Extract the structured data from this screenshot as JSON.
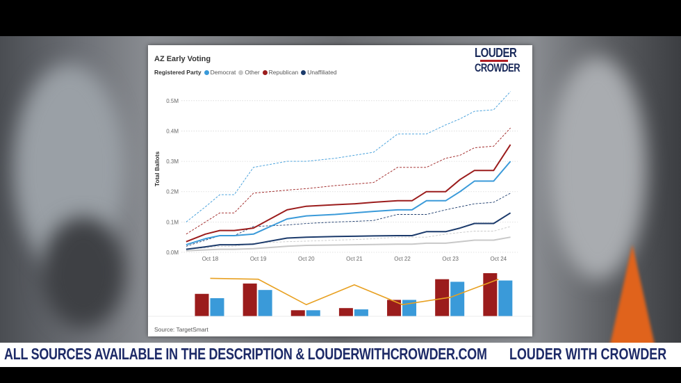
{
  "ticker": {
    "message": "ALL SOURCES AVAILABLE IN THE DESCRIPTION & LOUDERWITHCROWDER.COM",
    "brand": "LOUDER WITH CROWDER"
  },
  "logo": {
    "line1": "LOUDER",
    "line2": "CROWDER"
  },
  "colors": {
    "democrat": "#3a9ad9",
    "other": "#c8c8c8",
    "republican": "#9b1c1c",
    "unaffiliated": "#1b3a6b",
    "trend_line": "#e8a020"
  },
  "chart_data": {
    "type": "line",
    "title": "AZ Early Voting",
    "legend_title": "Registered Party",
    "ylabel": "Total Ballots",
    "ylim": [
      0,
      0.55
    ],
    "y_ticks": [
      "0.0M",
      "0.1M",
      "0.2M",
      "0.3M",
      "0.4M",
      "0.5M"
    ],
    "y_tick_values": [
      0,
      0.1,
      0.2,
      0.3,
      0.4,
      0.5
    ],
    "x_ticks": [
      "Oct 18",
      "Oct 19",
      "Oct 20",
      "Oct 21",
      "Oct 22",
      "Oct 23",
      "Oct 24"
    ],
    "x_tick_values": [
      18,
      19,
      20,
      21,
      22,
      23,
      24
    ],
    "xlim": [
      17.4,
      24.4
    ],
    "x": [
      17.5,
      17.9,
      18.2,
      18.5,
      18.9,
      19.6,
      20.0,
      20.6,
      21.0,
      21.4,
      21.9,
      22.2,
      22.5,
      22.9,
      23.2,
      23.5,
      23.9,
      24.25
    ],
    "series": [
      {
        "name": "Democrat",
        "color": "#3a9ad9",
        "style": "solid",
        "values": [
          0.025,
          0.045,
          0.055,
          0.055,
          0.06,
          0.11,
          0.12,
          0.125,
          0.13,
          0.135,
          0.14,
          0.14,
          0.17,
          0.17,
          0.2,
          0.235,
          0.235,
          0.3
        ]
      },
      {
        "name": "Other",
        "color": "#c8c8c8",
        "style": "solid",
        "values": [
          0.005,
          0.008,
          0.01,
          0.01,
          0.012,
          0.02,
          0.023,
          0.024,
          0.025,
          0.026,
          0.027,
          0.027,
          0.03,
          0.03,
          0.035,
          0.04,
          0.04,
          0.05
        ]
      },
      {
        "name": "Republican",
        "color": "#9b1c1c",
        "style": "solid",
        "values": [
          0.035,
          0.06,
          0.072,
          0.072,
          0.08,
          0.14,
          0.152,
          0.157,
          0.16,
          0.165,
          0.17,
          0.17,
          0.2,
          0.2,
          0.24,
          0.27,
          0.27,
          0.355
        ]
      },
      {
        "name": "Unaffiliated",
        "color": "#1b3a6b",
        "style": "solid",
        "values": [
          0.01,
          0.018,
          0.025,
          0.025,
          0.027,
          0.047,
          0.05,
          0.052,
          0.053,
          0.054,
          0.055,
          0.055,
          0.068,
          0.068,
          0.08,
          0.095,
          0.095,
          0.13
        ]
      },
      {
        "name": "Democrat",
        "color": "#3a9ad9",
        "style": "dashed",
        "values": [
          0.1,
          0.15,
          0.19,
          0.19,
          0.28,
          0.3,
          0.3,
          0.31,
          0.32,
          0.33,
          0.39,
          0.39,
          0.39,
          0.42,
          0.44,
          0.465,
          0.47,
          0.53
        ]
      },
      {
        "name": "Republican",
        "color": "#9b1c1c",
        "style": "dashed",
        "values": [
          0.06,
          0.1,
          0.13,
          0.13,
          0.195,
          0.205,
          0.21,
          0.22,
          0.225,
          0.23,
          0.28,
          0.28,
          0.28,
          0.31,
          0.32,
          0.345,
          0.35,
          0.41
        ]
      },
      {
        "name": "Unaffiliated",
        "color": "#1b3a6b",
        "style": "dashed",
        "values": [
          0.02,
          0.04,
          0.055,
          0.055,
          0.085,
          0.09,
          0.095,
          0.1,
          0.102,
          0.105,
          0.125,
          0.125,
          0.125,
          0.14,
          0.15,
          0.16,
          0.165,
          0.195
        ]
      },
      {
        "name": "Other",
        "color": "#c8c8c8",
        "style": "dashed",
        "values": [
          0.01,
          0.015,
          0.02,
          0.02,
          0.03,
          0.035,
          0.037,
          0.04,
          0.042,
          0.045,
          0.05,
          0.05,
          0.05,
          0.06,
          0.065,
          0.07,
          0.07,
          0.085
        ]
      }
    ],
    "daily_bars": {
      "x": [
        18,
        19,
        20,
        21,
        22,
        23,
        24
      ],
      "max": 1.0,
      "republican": [
        0.52,
        0.76,
        0.14,
        0.19,
        0.38,
        0.86,
        1.0
      ],
      "democrat": [
        0.42,
        0.61,
        0.14,
        0.16,
        0.38,
        0.8,
        0.83
      ],
      "trend": [
        0.88,
        0.86,
        0.27,
        0.73,
        0.27,
        0.44,
        0.86
      ]
    },
    "source": "Source: TargetSmart"
  }
}
